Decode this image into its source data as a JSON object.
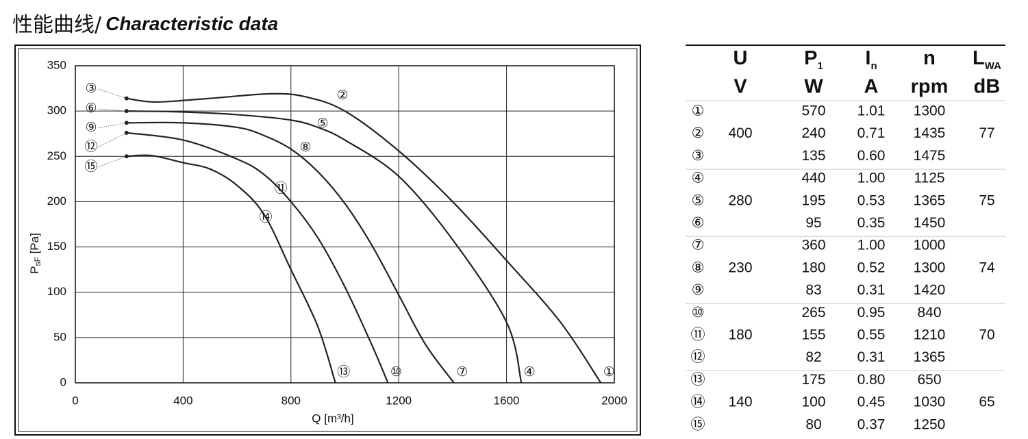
{
  "chart_data": {
    "type": "line",
    "title": "性能曲线/",
    "subtitle": "Characteristic data",
    "xlabel": "Q [m³/h]",
    "ylabel": [
      "P",
      "sF",
      " [Pa]"
    ],
    "xlim": [
      0,
      2000
    ],
    "xticks": [
      0,
      400,
      800,
      1200,
      1600,
      2000
    ],
    "ylim": [
      0,
      350
    ],
    "yticks": [
      0,
      50,
      100,
      150,
      200,
      250,
      300,
      350
    ],
    "grid": true,
    "color": "#222222",
    "series": [
      {
        "labels": [
          "③",
          "②",
          "①"
        ],
        "x": [
          190,
          300,
          500,
          720,
          850,
          1000,
          1200,
          1400,
          1600,
          1800,
          1950
        ],
        "values": [
          314,
          310,
          314,
          319,
          316,
          300,
          256,
          200,
          135,
          67,
          0
        ]
      },
      {
        "labels": [
          "⑥",
          "⑤",
          "④"
        ],
        "x": [
          190,
          400,
          600,
          800,
          900,
          1000,
          1200,
          1400,
          1600,
          1655
        ],
        "values": [
          300,
          299,
          296,
          290,
          282,
          268,
          228,
          158,
          67,
          0
        ]
      },
      {
        "labels": [
          "⑨",
          "⑧",
          "⑦"
        ],
        "x": [
          190,
          400,
          600,
          700,
          800,
          900,
          1000,
          1100,
          1200,
          1300,
          1405
        ],
        "values": [
          287,
          287,
          282,
          273,
          258,
          233,
          198,
          152,
          97,
          42,
          0
        ]
      },
      {
        "labels": [
          "⑫",
          "⑪",
          "⑩"
        ],
        "x": [
          190,
          400,
          600,
          700,
          800,
          900,
          1000,
          1100,
          1160
        ],
        "values": [
          276,
          268,
          247,
          230,
          200,
          160,
          106,
          42,
          0
        ]
      },
      {
        "labels": [
          "⑮",
          "⑭",
          "⑬"
        ],
        "x": [
          190,
          280,
          400,
          500,
          600,
          700,
          800,
          900,
          965
        ],
        "values": [
          250,
          251,
          243,
          236,
          218,
          186,
          125,
          62,
          0
        ]
      }
    ]
  },
  "table": {
    "headers": [
      [
        "U"
      ],
      [
        "P",
        "1"
      ],
      [
        "I",
        "n"
      ],
      [
        "n"
      ],
      [
        "L",
        "WA"
      ]
    ],
    "units": [
      "V",
      "W",
      "A",
      "rpm",
      "dB"
    ],
    "groups": [
      {
        "U": "400",
        "LWA": "77",
        "rows": [
          [
            "①",
            "570",
            "1.01",
            "1300"
          ],
          [
            "②",
            "240",
            "0.71",
            "1435"
          ],
          [
            "③",
            "135",
            "0.60",
            "1475"
          ]
        ]
      },
      {
        "U": "280",
        "LWA": "75",
        "rows": [
          [
            "④",
            "440",
            "1.00",
            "1125"
          ],
          [
            "⑤",
            "195",
            "0.53",
            "1365"
          ],
          [
            "⑥",
            "95",
            "0.35",
            "1450"
          ]
        ]
      },
      {
        "U": "230",
        "LWA": "74",
        "rows": [
          [
            "⑦",
            "360",
            "1.00",
            "1000"
          ],
          [
            "⑧",
            "180",
            "0.52",
            "1300"
          ],
          [
            "⑨",
            "83",
            "0.31",
            "1420"
          ]
        ]
      },
      {
        "U": "180",
        "LWA": "70",
        "rows": [
          [
            "⑩",
            "265",
            "0.95",
            "840"
          ],
          [
            "⑪",
            "155",
            "0.55",
            "1210"
          ],
          [
            "⑫",
            "82",
            "0.31",
            "1365"
          ]
        ]
      },
      {
        "U": "140",
        "LWA": "65",
        "rows": [
          [
            "⑬",
            "175",
            "0.80",
            "650"
          ],
          [
            "⑭",
            "100",
            "0.45",
            "1030"
          ],
          [
            "⑮",
            "80",
            "0.37",
            "1250"
          ]
        ]
      }
    ]
  }
}
